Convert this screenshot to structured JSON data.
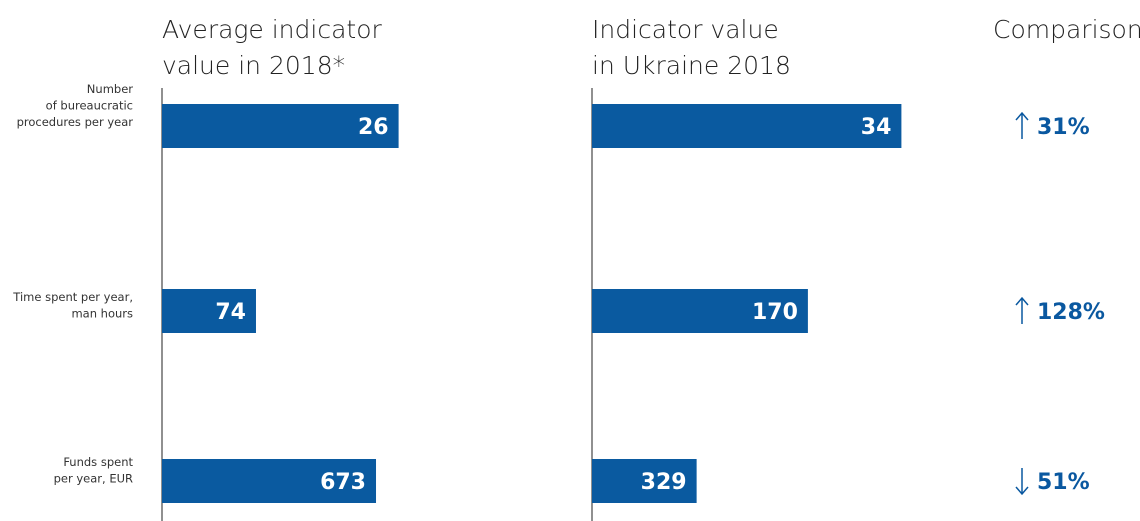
{
  "columns": {
    "average": [
      "Average indicator",
      "value in 2018*"
    ],
    "ukraine": [
      "Indicator value",
      "in Ukraine 2018"
    ],
    "comparison": [
      "Comparison"
    ]
  },
  "rows": [
    {
      "label": [
        "Number",
        "of bureaucratic",
        "procedures per year"
      ],
      "average": 26,
      "ukraine": 34,
      "comparison": "31%"
    },
    {
      "label": [
        "Time spent per year,",
        "man hours"
      ],
      "average": 74,
      "ukraine": 170,
      "comparison": "128%"
    },
    {
      "label": [
        "Funds spent",
        "per year, EUR"
      ],
      "average": 673,
      "ukraine": 329,
      "comparison": "51%"
    }
  ]
}
